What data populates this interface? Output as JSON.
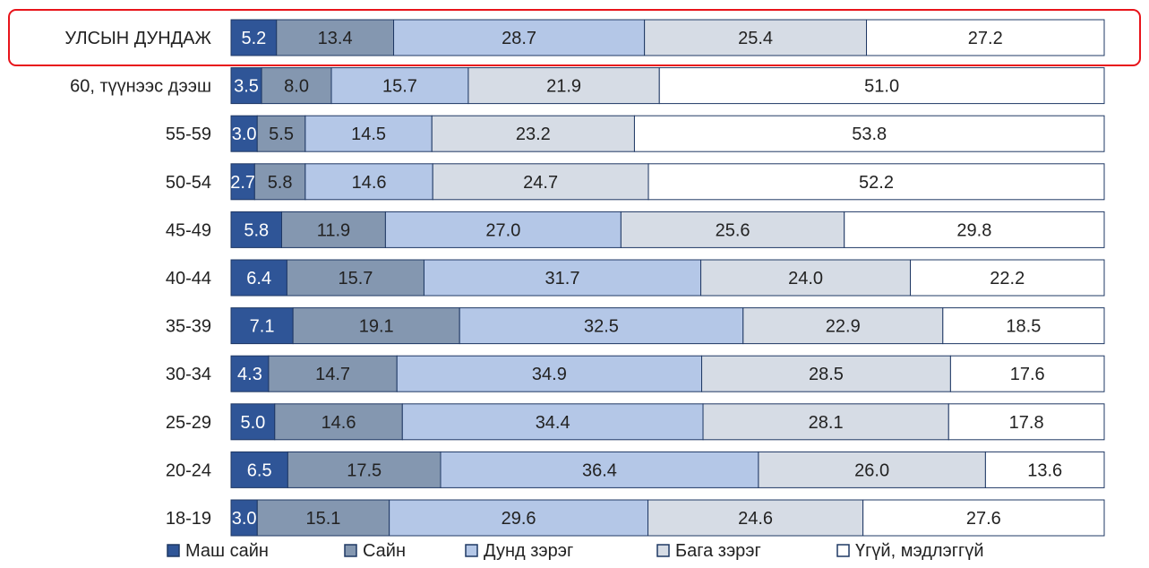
{
  "chart_data": {
    "type": "bar",
    "orientation": "horizontal",
    "stacked": true,
    "percent_stacked": true,
    "categories": [
      "УЛСЫН ДУНДАЖ",
      "60, түүнээс дээш",
      "55-59",
      "50-54",
      "45-49",
      "40-44",
      "35-39",
      "30-34",
      "25-29",
      "20-24",
      "18-19"
    ],
    "series": [
      {
        "name": "Маш сайн",
        "color": "#2f5597",
        "label_color": "#ffffff",
        "values": [
          5.2,
          3.5,
          3.0,
          2.7,
          5.8,
          6.4,
          7.1,
          4.3,
          5.0,
          6.5,
          3.0
        ]
      },
      {
        "name": "Сайн",
        "color": "#8497b0",
        "label_color": "#222222",
        "values": [
          13.4,
          8.0,
          5.5,
          5.8,
          11.9,
          15.7,
          19.1,
          14.7,
          14.6,
          17.5,
          15.1
        ]
      },
      {
        "name": "Дунд зэрэг",
        "color": "#b4c7e7",
        "label_color": "#222222",
        "values": [
          28.7,
          15.7,
          14.5,
          14.6,
          27.0,
          31.7,
          32.5,
          34.9,
          34.4,
          36.4,
          29.6
        ]
      },
      {
        "name": "Бага зэрэг",
        "color": "#d6dce5",
        "label_color": "#222222",
        "values": [
          25.4,
          21.9,
          23.2,
          24.7,
          25.6,
          24.0,
          22.9,
          28.5,
          28.1,
          26.0,
          24.6
        ]
      },
      {
        "name": "Үгүй, мэдлэггүй",
        "color": "#ffffff",
        "label_color": "#222222",
        "values": [
          27.2,
          51.0,
          53.8,
          52.2,
          29.8,
          22.2,
          18.5,
          17.6,
          17.8,
          13.6,
          27.6
        ]
      }
    ],
    "highlighted_category": "УЛСЫН ДУНДАЖ",
    "highlight_color": "#e8141b",
    "border_color": "#1f3864",
    "legend_position": "bottom",
    "grid": false
  }
}
